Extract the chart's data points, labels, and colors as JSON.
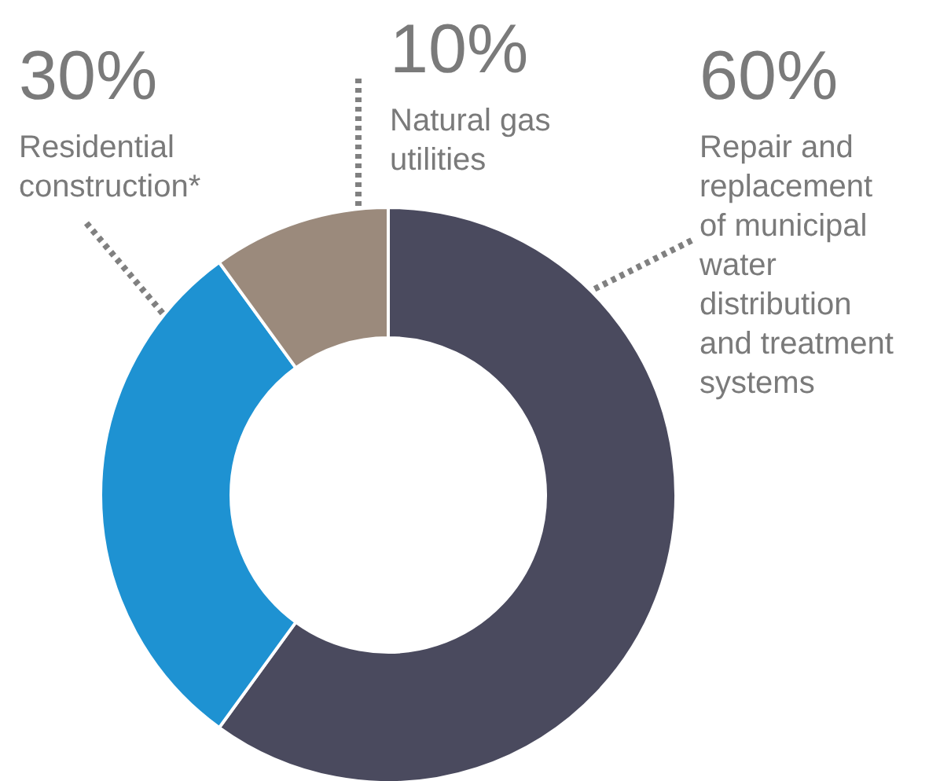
{
  "chart_data": {
    "type": "donut",
    "categories": [
      "Repair and replacement of municipal water distribution and treatment systems",
      "Residential construction*",
      "Natural gas utilities"
    ],
    "values": [
      60,
      30,
      10
    ],
    "colors": [
      "#4a4a5e",
      "#1e92d2",
      "#9b8a7c"
    ],
    "value_labels": [
      "60%",
      "30%",
      "10%"
    ]
  }
}
